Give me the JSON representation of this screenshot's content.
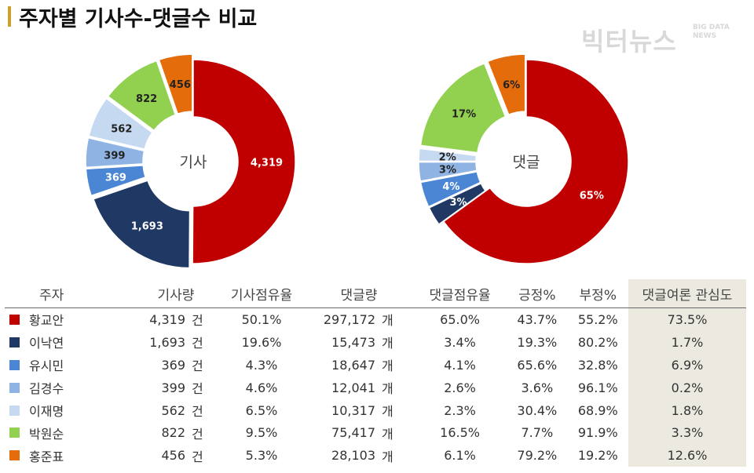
{
  "title": "주자별 기사수-댓글수 비교",
  "logo": {
    "main": "빅터뉴스",
    "sub": "BIG DATA NEWS"
  },
  "colors": {
    "title_bar": "#c9a227"
  },
  "chart_data": [
    {
      "type": "pie",
      "center_label": "기사",
      "labels": [
        "황교안",
        "이낙연",
        "유시민",
        "김경수",
        "이재명",
        "박원순",
        "홍준표"
      ],
      "values": [
        4319,
        1693,
        369,
        399,
        562,
        822,
        456
      ],
      "data_labels": [
        "4,319",
        "1,693",
        "369",
        "399",
        "562",
        "822",
        "456"
      ],
      "colors": [
        "#c00000",
        "#1f3864",
        "#4a86d4",
        "#8fb4e3",
        "#c5d9f1",
        "#92d050",
        "#e46c0a"
      ]
    },
    {
      "type": "pie",
      "center_label": "댓글",
      "labels": [
        "황교안",
        "이낙연",
        "유시민",
        "김경수",
        "이재명",
        "박원순",
        "홍준표"
      ],
      "values": [
        65,
        3,
        4,
        3,
        2,
        17,
        6
      ],
      "data_labels": [
        "65%",
        "3%",
        "4%",
        "3%",
        "2%",
        "17%",
        "6%"
      ],
      "colors": [
        "#c00000",
        "#1f3864",
        "#4a86d4",
        "#8fb4e3",
        "#c5d9f1",
        "#92d050",
        "#e46c0a"
      ]
    }
  ],
  "table": {
    "headers": [
      "주자",
      "기사량",
      "기사점유율",
      "댓글량",
      "댓글점유율",
      "긍정%",
      "부정%",
      "댓글여론 관심도"
    ],
    "rows": [
      {
        "name": "황교안",
        "color": "#c00000",
        "articles": "4,319",
        "unit_a": "건",
        "art_share": "50.1%",
        "comments": "297,172",
        "unit_c": "개",
        "cmt_share": "65.0%",
        "pos": "43.7%",
        "neg": "55.2%",
        "interest": "73.5%"
      },
      {
        "name": "이낙연",
        "color": "#1f3864",
        "articles": "1,693",
        "unit_a": "건",
        "art_share": "19.6%",
        "comments": "15,473",
        "unit_c": "개",
        "cmt_share": "3.4%",
        "pos": "19.3%",
        "neg": "80.2%",
        "interest": "1.7%"
      },
      {
        "name": "유시민",
        "color": "#4a86d4",
        "articles": "369",
        "unit_a": "건",
        "art_share": "4.3%",
        "comments": "18,647",
        "unit_c": "개",
        "cmt_share": "4.1%",
        "pos": "65.6%",
        "neg": "32.8%",
        "interest": "6.9%"
      },
      {
        "name": "김경수",
        "color": "#8fb4e3",
        "articles": "399",
        "unit_a": "건",
        "art_share": "4.6%",
        "comments": "12,041",
        "unit_c": "개",
        "cmt_share": "2.6%",
        "pos": "3.6%",
        "neg": "96.1%",
        "interest": "0.2%"
      },
      {
        "name": "이재명",
        "color": "#c5d9f1",
        "articles": "562",
        "unit_a": "건",
        "art_share": "6.5%",
        "comments": "10,317",
        "unit_c": "개",
        "cmt_share": "2.3%",
        "pos": "30.4%",
        "neg": "68.9%",
        "interest": "1.8%"
      },
      {
        "name": "박원순",
        "color": "#92d050",
        "articles": "822",
        "unit_a": "건",
        "art_share": "9.5%",
        "comments": "75,417",
        "unit_c": "개",
        "cmt_share": "16.5%",
        "pos": "7.7%",
        "neg": "91.9%",
        "interest": "3.3%"
      },
      {
        "name": "홍준표",
        "color": "#e46c0a",
        "articles": "456",
        "unit_a": "건",
        "art_share": "5.3%",
        "comments": "28,103",
        "unit_c": "개",
        "cmt_share": "6.1%",
        "pos": "79.2%",
        "neg": "19.2%",
        "interest": "12.6%"
      }
    ]
  }
}
